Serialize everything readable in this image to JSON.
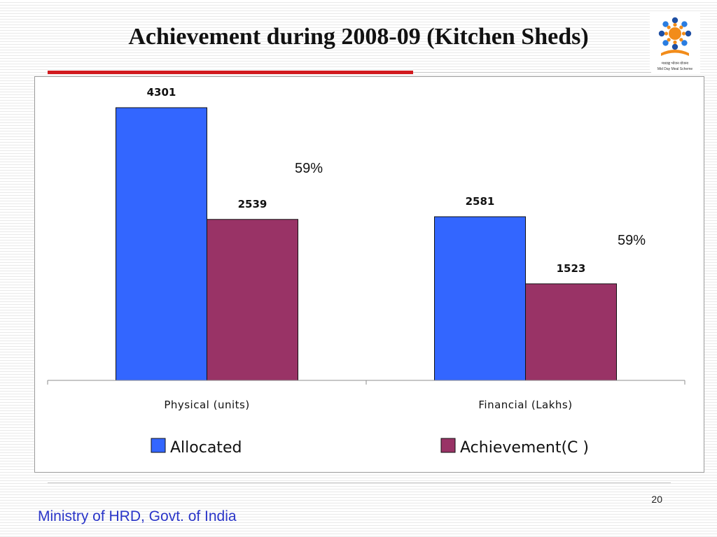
{
  "slide": {
    "title": "Achievement during 2008-09 (Kitchen Sheds)",
    "page_number": "20",
    "footer": "Ministry of HRD, Govt. of India"
  },
  "logo": {
    "icon": "mid-day-meal-logo-icon",
    "text_hindi": "मध्याह्न भोजन योजना",
    "text_english": "Mid Day Meal Scheme"
  },
  "chart_data": {
    "type": "bar",
    "title": "",
    "xlabel": "",
    "ylabel": "",
    "ylim": [
      0,
      5000
    ],
    "grid": false,
    "legend_position": "bottom",
    "categories": [
      "Physical (units)",
      "Financial (Lakhs)"
    ],
    "series": [
      {
        "name": "Allocated",
        "values": [
          4301,
          2581
        ],
        "color": "#3366ff"
      },
      {
        "name": "Achievement(C )",
        "values": [
          2539,
          1523
        ],
        "color": "#993366"
      }
    ],
    "annotations": [
      {
        "category": "Physical (units)",
        "text": "59%"
      },
      {
        "category": "Financial (Lakhs)",
        "text": "59%"
      }
    ]
  }
}
